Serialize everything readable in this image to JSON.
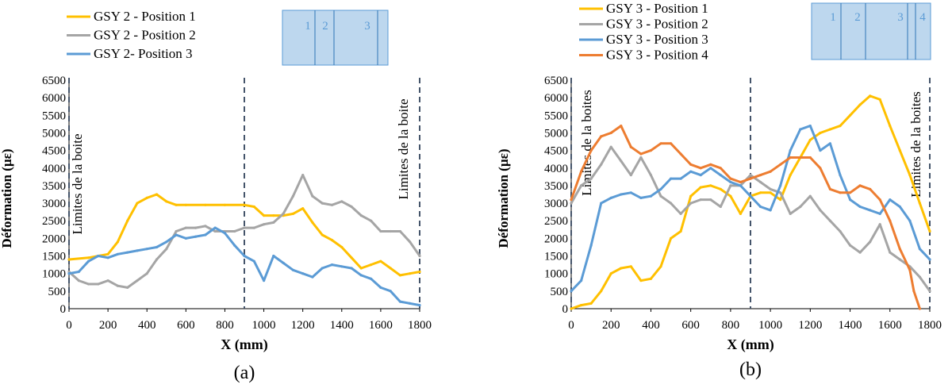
{
  "panels": [
    {
      "label": "(a)",
      "colors": [
        "#FFC000",
        "#A5A5A5",
        "#5B9BD5"
      ],
      "inset_labels": [
        "1",
        "2",
        "3"
      ]
    },
    {
      "label": "(b)",
      "colors": [
        "#FFC000",
        "#A5A5A5",
        "#5B9BD5",
        "#ED7D31"
      ],
      "inset_labels": [
        "1",
        "2",
        "3",
        "4"
      ]
    }
  ],
  "chart_data": [
    {
      "type": "line",
      "xlabel": "X (mm)",
      "ylabel": "Déformation (µε)",
      "xlim": [
        0,
        1800
      ],
      "ylim": [
        0,
        6500
      ],
      "x_ticks": [
        "0",
        "200",
        "400",
        "600",
        "800",
        "1000",
        "1200",
        "1400",
        "1600",
        "1800"
      ],
      "y_ticks": [
        "0",
        "500",
        "1000",
        "1500",
        "2000",
        "2500",
        "3000",
        "3500",
        "4000",
        "4500",
        "5000",
        "5500",
        "6000",
        "6500"
      ],
      "grid": false,
      "legend_position": "top-left",
      "vertical_lines": [
        0,
        900,
        1800
      ],
      "annotations": [
        "Limites de la boite",
        "Limites de la boite"
      ],
      "series": [
        {
          "name": "GSY 2 - Position 1",
          "x": [
            0,
            100,
            200,
            250,
            300,
            350,
            400,
            450,
            500,
            550,
            600,
            700,
            800,
            900,
            950,
            1000,
            1050,
            1100,
            1150,
            1200,
            1250,
            1300,
            1350,
            1400,
            1450,
            1500,
            1550,
            1600,
            1650,
            1700,
            1750,
            1800
          ],
          "y": [
            1400,
            1450,
            1550,
            1900,
            2500,
            3000,
            3150,
            3250,
            3050,
            2950,
            2950,
            2950,
            2950,
            2950,
            2900,
            2650,
            2650,
            2650,
            2700,
            2850,
            2450,
            2100,
            1950,
            1750,
            1450,
            1150,
            1250,
            1350,
            1150,
            950,
            1000,
            1050
          ]
        },
        {
          "name": "GSY 2 - Position 2",
          "x": [
            0,
            50,
            100,
            150,
            200,
            250,
            300,
            350,
            400,
            450,
            500,
            550,
            600,
            650,
            700,
            750,
            800,
            850,
            900,
            950,
            1000,
            1050,
            1100,
            1150,
            1200,
            1250,
            1300,
            1350,
            1400,
            1450,
            1500,
            1550,
            1600,
            1650,
            1700,
            1750,
            1800
          ],
          "y": [
            1050,
            800,
            700,
            700,
            800,
            650,
            600,
            800,
            1000,
            1400,
            1700,
            2200,
            2300,
            2300,
            2350,
            2200,
            2200,
            2200,
            2300,
            2300,
            2400,
            2450,
            2700,
            3200,
            3800,
            3200,
            3000,
            2950,
            3050,
            2900,
            2650,
            2500,
            2200,
            2200,
            2200,
            1900,
            1500
          ]
        },
        {
          "name": "GSY 2- Position 3",
          "x": [
            0,
            50,
            100,
            150,
            200,
            250,
            300,
            350,
            400,
            450,
            500,
            550,
            600,
            650,
            700,
            750,
            800,
            850,
            900,
            950,
            1000,
            1050,
            1100,
            1150,
            1200,
            1250,
            1300,
            1350,
            1400,
            1450,
            1500,
            1550,
            1600,
            1650,
            1700,
            1750,
            1800
          ],
          "y": [
            1000,
            1050,
            1350,
            1500,
            1450,
            1550,
            1600,
            1650,
            1700,
            1750,
            1900,
            2100,
            2000,
            2050,
            2100,
            2300,
            2150,
            1800,
            1500,
            1350,
            800,
            1500,
            1300,
            1100,
            1000,
            900,
            1150,
            1250,
            1200,
            1150,
            950,
            850,
            600,
            500,
            200,
            150,
            100
          ]
        }
      ]
    },
    {
      "type": "line",
      "xlabel": "X (mm)",
      "ylabel": "Déformation (µε)",
      "xlim": [
        0,
        1800
      ],
      "ylim": [
        0,
        6500
      ],
      "x_ticks": [
        "0",
        "200",
        "400",
        "600",
        "800",
        "1000",
        "1200",
        "1400",
        "1600",
        "1800"
      ],
      "y_ticks": [
        "0",
        "500",
        "1000",
        "1500",
        "2000",
        "2500",
        "3000",
        "3500",
        "4000",
        "4500",
        "5000",
        "5500",
        "6000",
        "6500"
      ],
      "grid": false,
      "legend_position": "top-left",
      "vertical_lines": [
        0,
        900,
        1800
      ],
      "annotations": [
        "Limites de la boites",
        "Limites de la boites"
      ],
      "series": [
        {
          "name": "GSY 3 - Position 1",
          "x": [
            0,
            50,
            100,
            150,
            200,
            250,
            300,
            350,
            400,
            450,
            500,
            550,
            600,
            650,
            700,
            750,
            800,
            850,
            900,
            950,
            1000,
            1050,
            1100,
            1150,
            1200,
            1250,
            1300,
            1350,
            1400,
            1450,
            1500,
            1550,
            1600,
            1650,
            1700,
            1750,
            1800
          ],
          "y": [
            0,
            100,
            150,
            500,
            1000,
            1150,
            1200,
            800,
            850,
            1200,
            2000,
            2200,
            3200,
            3450,
            3500,
            3400,
            3200,
            2700,
            3200,
            3300,
            3300,
            3100,
            3800,
            4300,
            4800,
            5000,
            5100,
            5200,
            5500,
            5800,
            6050,
            5950,
            5200,
            4500,
            3800,
            3000,
            2200
          ]
        },
        {
          "name": "GSY 3 - Position 2",
          "x": [
            0,
            50,
            100,
            150,
            200,
            250,
            300,
            350,
            400,
            450,
            500,
            550,
            600,
            650,
            700,
            750,
            800,
            850,
            900,
            950,
            1000,
            1050,
            1100,
            1150,
            1200,
            1250,
            1300,
            1350,
            1400,
            1450,
            1500,
            1550,
            1600,
            1650,
            1700,
            1750,
            1800
          ],
          "y": [
            3000,
            3500,
            3700,
            4100,
            4600,
            4200,
            3800,
            4300,
            3800,
            3200,
            3000,
            2700,
            3000,
            3100,
            3100,
            2900,
            3500,
            3500,
            3800,
            3600,
            3400,
            3300,
            2700,
            2900,
            3200,
            2800,
            2500,
            2200,
            1800,
            1600,
            1900,
            2400,
            1600,
            1400,
            1200,
            900,
            500
          ]
        },
        {
          "name": "GSY 3 - Position 3",
          "x": [
            0,
            50,
            100,
            150,
            200,
            250,
            300,
            350,
            400,
            450,
            500,
            550,
            600,
            650,
            700,
            750,
            800,
            850,
            900,
            950,
            1000,
            1050,
            1100,
            1150,
            1200,
            1250,
            1300,
            1350,
            1400,
            1450,
            1500,
            1550,
            1600,
            1650,
            1700,
            1750,
            1800
          ],
          "y": [
            500,
            800,
            1800,
            3000,
            3150,
            3250,
            3300,
            3150,
            3200,
            3400,
            3700,
            3700,
            3900,
            3800,
            4000,
            3800,
            3600,
            3500,
            3200,
            2900,
            2800,
            3500,
            4500,
            5100,
            5200,
            4500,
            4700,
            3800,
            3100,
            2900,
            2800,
            2700,
            3100,
            2900,
            2500,
            1700,
            1400
          ]
        },
        {
          "name": "GSY 3 - Position 4",
          "x": [
            0,
            50,
            100,
            150,
            200,
            250,
            300,
            350,
            400,
            450,
            500,
            550,
            600,
            650,
            700,
            750,
            800,
            850,
            900,
            950,
            1000,
            1050,
            1100,
            1150,
            1200,
            1250,
            1300,
            1350,
            1400,
            1450,
            1500,
            1550,
            1600,
            1650,
            1700,
            1720,
            1750
          ],
          "y": [
            3100,
            3900,
            4500,
            4900,
            5000,
            5200,
            4600,
            4400,
            4500,
            4700,
            4700,
            4400,
            4100,
            4000,
            4100,
            4000,
            3700,
            3600,
            3700,
            3800,
            3900,
            4100,
            4300,
            4300,
            4300,
            4000,
            3400,
            3300,
            3300,
            3500,
            3400,
            3100,
            2500,
            1700,
            1100,
            500,
            0
          ]
        }
      ]
    }
  ]
}
